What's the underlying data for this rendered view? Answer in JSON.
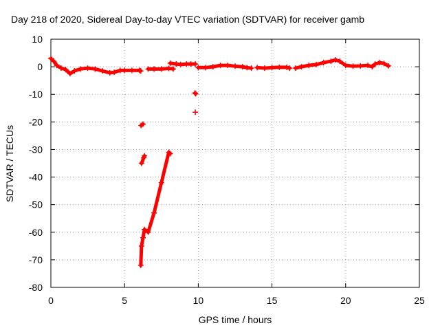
{
  "chart_data": {
    "type": "scatter",
    "title": "Day 218 of 2020, Sidereal Day-to-day VTEC variation (SDTVAR) for receiver gamb",
    "xlabel": "GPS time / hours",
    "ylabel": "SDTVAR / TECUs",
    "xlim": [
      0,
      25
    ],
    "ylim": [
      -80,
      10
    ],
    "x_ticks": [
      0,
      5,
      10,
      15,
      20,
      25
    ],
    "y_ticks": [
      -80,
      -70,
      -60,
      -50,
      -40,
      -30,
      -20,
      -10,
      0,
      10
    ],
    "grid": true,
    "marker": "+",
    "series": [
      {
        "name": "SDTVAR",
        "color": "#ff0000",
        "segments": [
          {
            "name": "main-trace",
            "points": [
              [
                0.0,
                3.0
              ],
              [
                0.2,
                2.0
              ],
              [
                0.4,
                0.5
              ],
              [
                0.7,
                -0.5
              ],
              [
                1.0,
                -1.0
              ],
              [
                1.3,
                -2.5
              ],
              [
                1.6,
                -1.5
              ],
              [
                2.0,
                -0.8
              ],
              [
                2.5,
                -0.5
              ],
              [
                3.0,
                -0.8
              ],
              [
                3.5,
                -1.5
              ],
              [
                4.0,
                -2.2
              ],
              [
                4.3,
                -2.0
              ],
              [
                4.7,
                -1.3
              ],
              [
                5.0,
                -1.3
              ],
              [
                5.5,
                -1.3
              ],
              [
                6.0,
                -1.3
              ],
              [
                6.1,
                -1.5
              ]
            ]
          },
          {
            "name": "segment-0",
            "points": [
              [
                6.6,
                -0.8
              ],
              [
                7.0,
                -0.8
              ],
              [
                7.5,
                -0.8
              ],
              [
                8.0,
                -0.6
              ],
              [
                8.3,
                -0.8
              ]
            ]
          },
          {
            "name": "segment-1",
            "points": [
              [
                8.1,
                1.3
              ],
              [
                8.5,
                1.0
              ],
              [
                8.8,
                0.8
              ],
              [
                9.2,
                1.0
              ],
              [
                9.5,
                1.0
              ],
              [
                9.8,
                1.0
              ]
            ]
          },
          {
            "name": "segment-2",
            "points": [
              [
                10.0,
                -0.3
              ],
              [
                10.5,
                -0.3
              ],
              [
                11.0,
                0.0
              ],
              [
                11.5,
                0.5
              ],
              [
                12.0,
                0.5
              ],
              [
                12.5,
                0.2
              ],
              [
                13.0,
                0.0
              ],
              [
                13.3,
                -0.3
              ],
              [
                13.6,
                -0.5
              ]
            ]
          },
          {
            "name": "segment-3",
            "points": [
              [
                14.0,
                -0.3
              ],
              [
                14.5,
                -0.5
              ],
              [
                15.0,
                -0.3
              ],
              [
                15.5,
                -0.2
              ],
              [
                16.0,
                -0.2
              ],
              [
                16.2,
                -0.5
              ]
            ]
          },
          {
            "name": "segment-4",
            "points": [
              [
                16.6,
                -0.5
              ],
              [
                17.0,
                0.0
              ],
              [
                17.5,
                0.5
              ],
              [
                18.0,
                0.8
              ],
              [
                18.5,
                1.5
              ],
              [
                19.0,
                2.0
              ],
              [
                19.3,
                2.5
              ],
              [
                19.6,
                2.0
              ],
              [
                20.0,
                0.5
              ],
              [
                20.5,
                0.2
              ],
              [
                21.0,
                0.3
              ],
              [
                21.5,
                0.5
              ],
              [
                21.8,
                0.0
              ],
              [
                22.0,
                1.0
              ],
              [
                22.3,
                1.5
              ],
              [
                22.6,
                1.2
              ],
              [
                22.9,
                0.3
              ]
            ]
          },
          {
            "name": "segment-5",
            "points": [
              [
                6.12,
                -21.3
              ],
              [
                6.25,
                -20.8
              ]
            ]
          },
          {
            "name": "segment-6",
            "points": [
              [
                6.15,
                -35.0
              ],
              [
                6.3,
                -33.0
              ],
              [
                6.35,
                -32.3
              ]
            ]
          },
          {
            "name": "segment-7",
            "points": [
              [
                9.78,
                -9.5
              ],
              [
                9.82,
                -9.8
              ]
            ]
          },
          {
            "name": "segment-8",
            "points": [
              [
                9.8,
                -16.5
              ]
            ]
          },
          {
            "name": "segment-9",
            "points": [
              [
                6.1,
                -72.0
              ],
              [
                6.15,
                -65.0
              ],
              [
                6.25,
                -62.0
              ],
              [
                6.35,
                -59.0
              ],
              [
                6.6,
                -60.0
              ],
              [
                7.0,
                -53.0
              ],
              [
                7.5,
                -42.0
              ],
              [
                8.0,
                -31.0
              ],
              [
                8.1,
                -31.5
              ]
            ]
          }
        ]
      }
    ]
  }
}
